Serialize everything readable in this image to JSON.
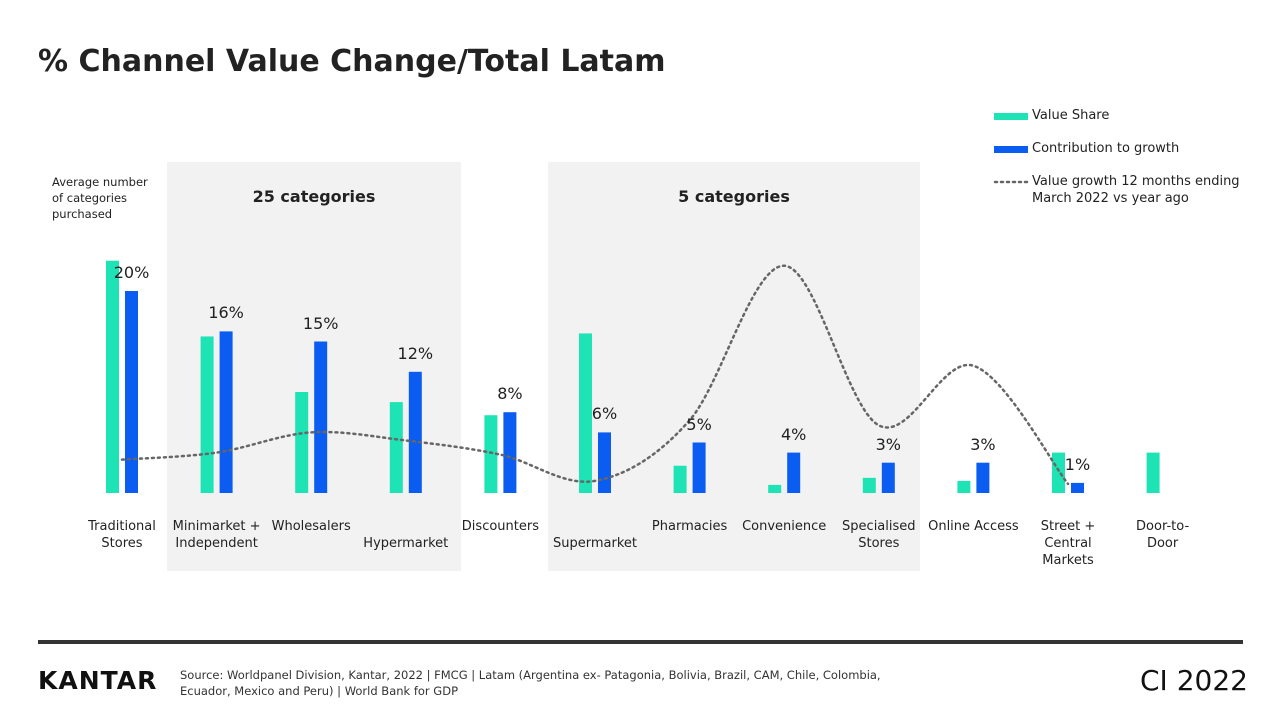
{
  "chart_data": {
    "type": "bar",
    "title": "% Channel Value Change/Total Latam",
    "note": "Average number of categories purchased",
    "annotations": [
      "25 categories",
      "5 categories"
    ],
    "categories": [
      "Traditional\nStores",
      "Minimarket +\nIndependent",
      "Wholesalers",
      "Hypermarket",
      "Discounters",
      "Supermarket",
      "Pharmacies",
      "Convenience",
      "Specialised\nStores",
      "Online Access",
      "Street +\nCentral\nMarkets",
      "Door-to-\nDoor"
    ],
    "series": [
      {
        "name": "Value Share",
        "color": "#1ee3b4",
        "values": [
          23,
          15.5,
          10,
          9,
          7.7,
          15.8,
          2.7,
          0.8,
          1.5,
          1.2,
          4,
          4
        ]
      },
      {
        "name": "Contribution to growth",
        "color": "#0b5cf0",
        "values": [
          20,
          16,
          15,
          12,
          8,
          6,
          5,
          4,
          3,
          3,
          1,
          null
        ],
        "value_labels": [
          "20%",
          "16%",
          "15%",
          "12%",
          "8%",
          "6%",
          "5%",
          "4%",
          "3%",
          "3%",
          "1%",
          null
        ]
      },
      {
        "name": "Value growth 12 months ending March 2022 vs year ago",
        "color": "#666666",
        "style": "dotted",
        "values": [
          3.3,
          4,
          6,
          5.2,
          3.8,
          1.2,
          7.2,
          22.5,
          6.7,
          12.6,
          0.9,
          null
        ]
      }
    ]
  },
  "footer": {
    "logo": "KANTAR",
    "source": "Source: Worldpanel Division, Kantar, 2022 | FMCG | Latam (Argentina ex- Patagonia, Bolivia, Brazil, CAM, Chile, Colombia, Ecuador, Mexico and Peru) | World Bank for GDP",
    "brand": "CI 2022"
  }
}
